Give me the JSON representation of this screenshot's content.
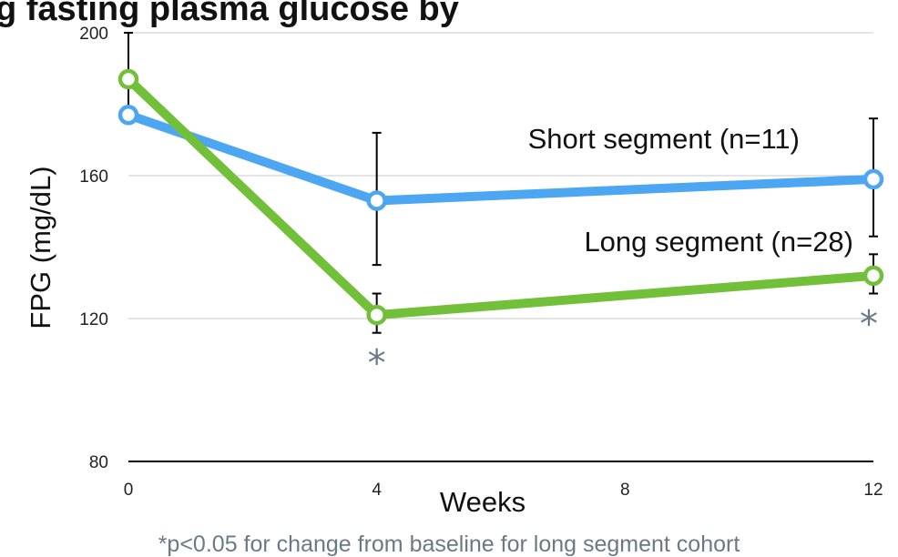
{
  "chart_data": {
    "type": "line",
    "title": "g fasting plasma glucose by",
    "xlabel": "Weeks",
    "ylabel": "FPG (mg/dL)",
    "x": [
      0,
      4,
      12
    ],
    "x_ticks": [
      "0",
      "4",
      "8",
      "12"
    ],
    "y_ticks": [
      "80",
      "120",
      "160",
      "200"
    ],
    "ylim": [
      80,
      200
    ],
    "xlim": [
      0,
      12
    ],
    "grid": true,
    "series": [
      {
        "name": "Short segment (n=11)",
        "color": "#4da6f2",
        "values": [
          177,
          153,
          159
        ],
        "error_bars": [
          [
            177,
            200
          ],
          [
            135,
            172
          ],
          [
            143,
            176
          ]
        ]
      },
      {
        "name": "Long segment (n=28)",
        "color": "#72bf3a",
        "values": [
          187,
          121,
          132
        ],
        "error_bars": [
          [
            187,
            187
          ],
          [
            116,
            127
          ],
          [
            127,
            138
          ]
        ]
      }
    ],
    "significance_marker": "*",
    "significance_at_x": [
      4,
      12
    ],
    "footnote": "*p<0.05 for change from baseline for long segment cohort"
  }
}
